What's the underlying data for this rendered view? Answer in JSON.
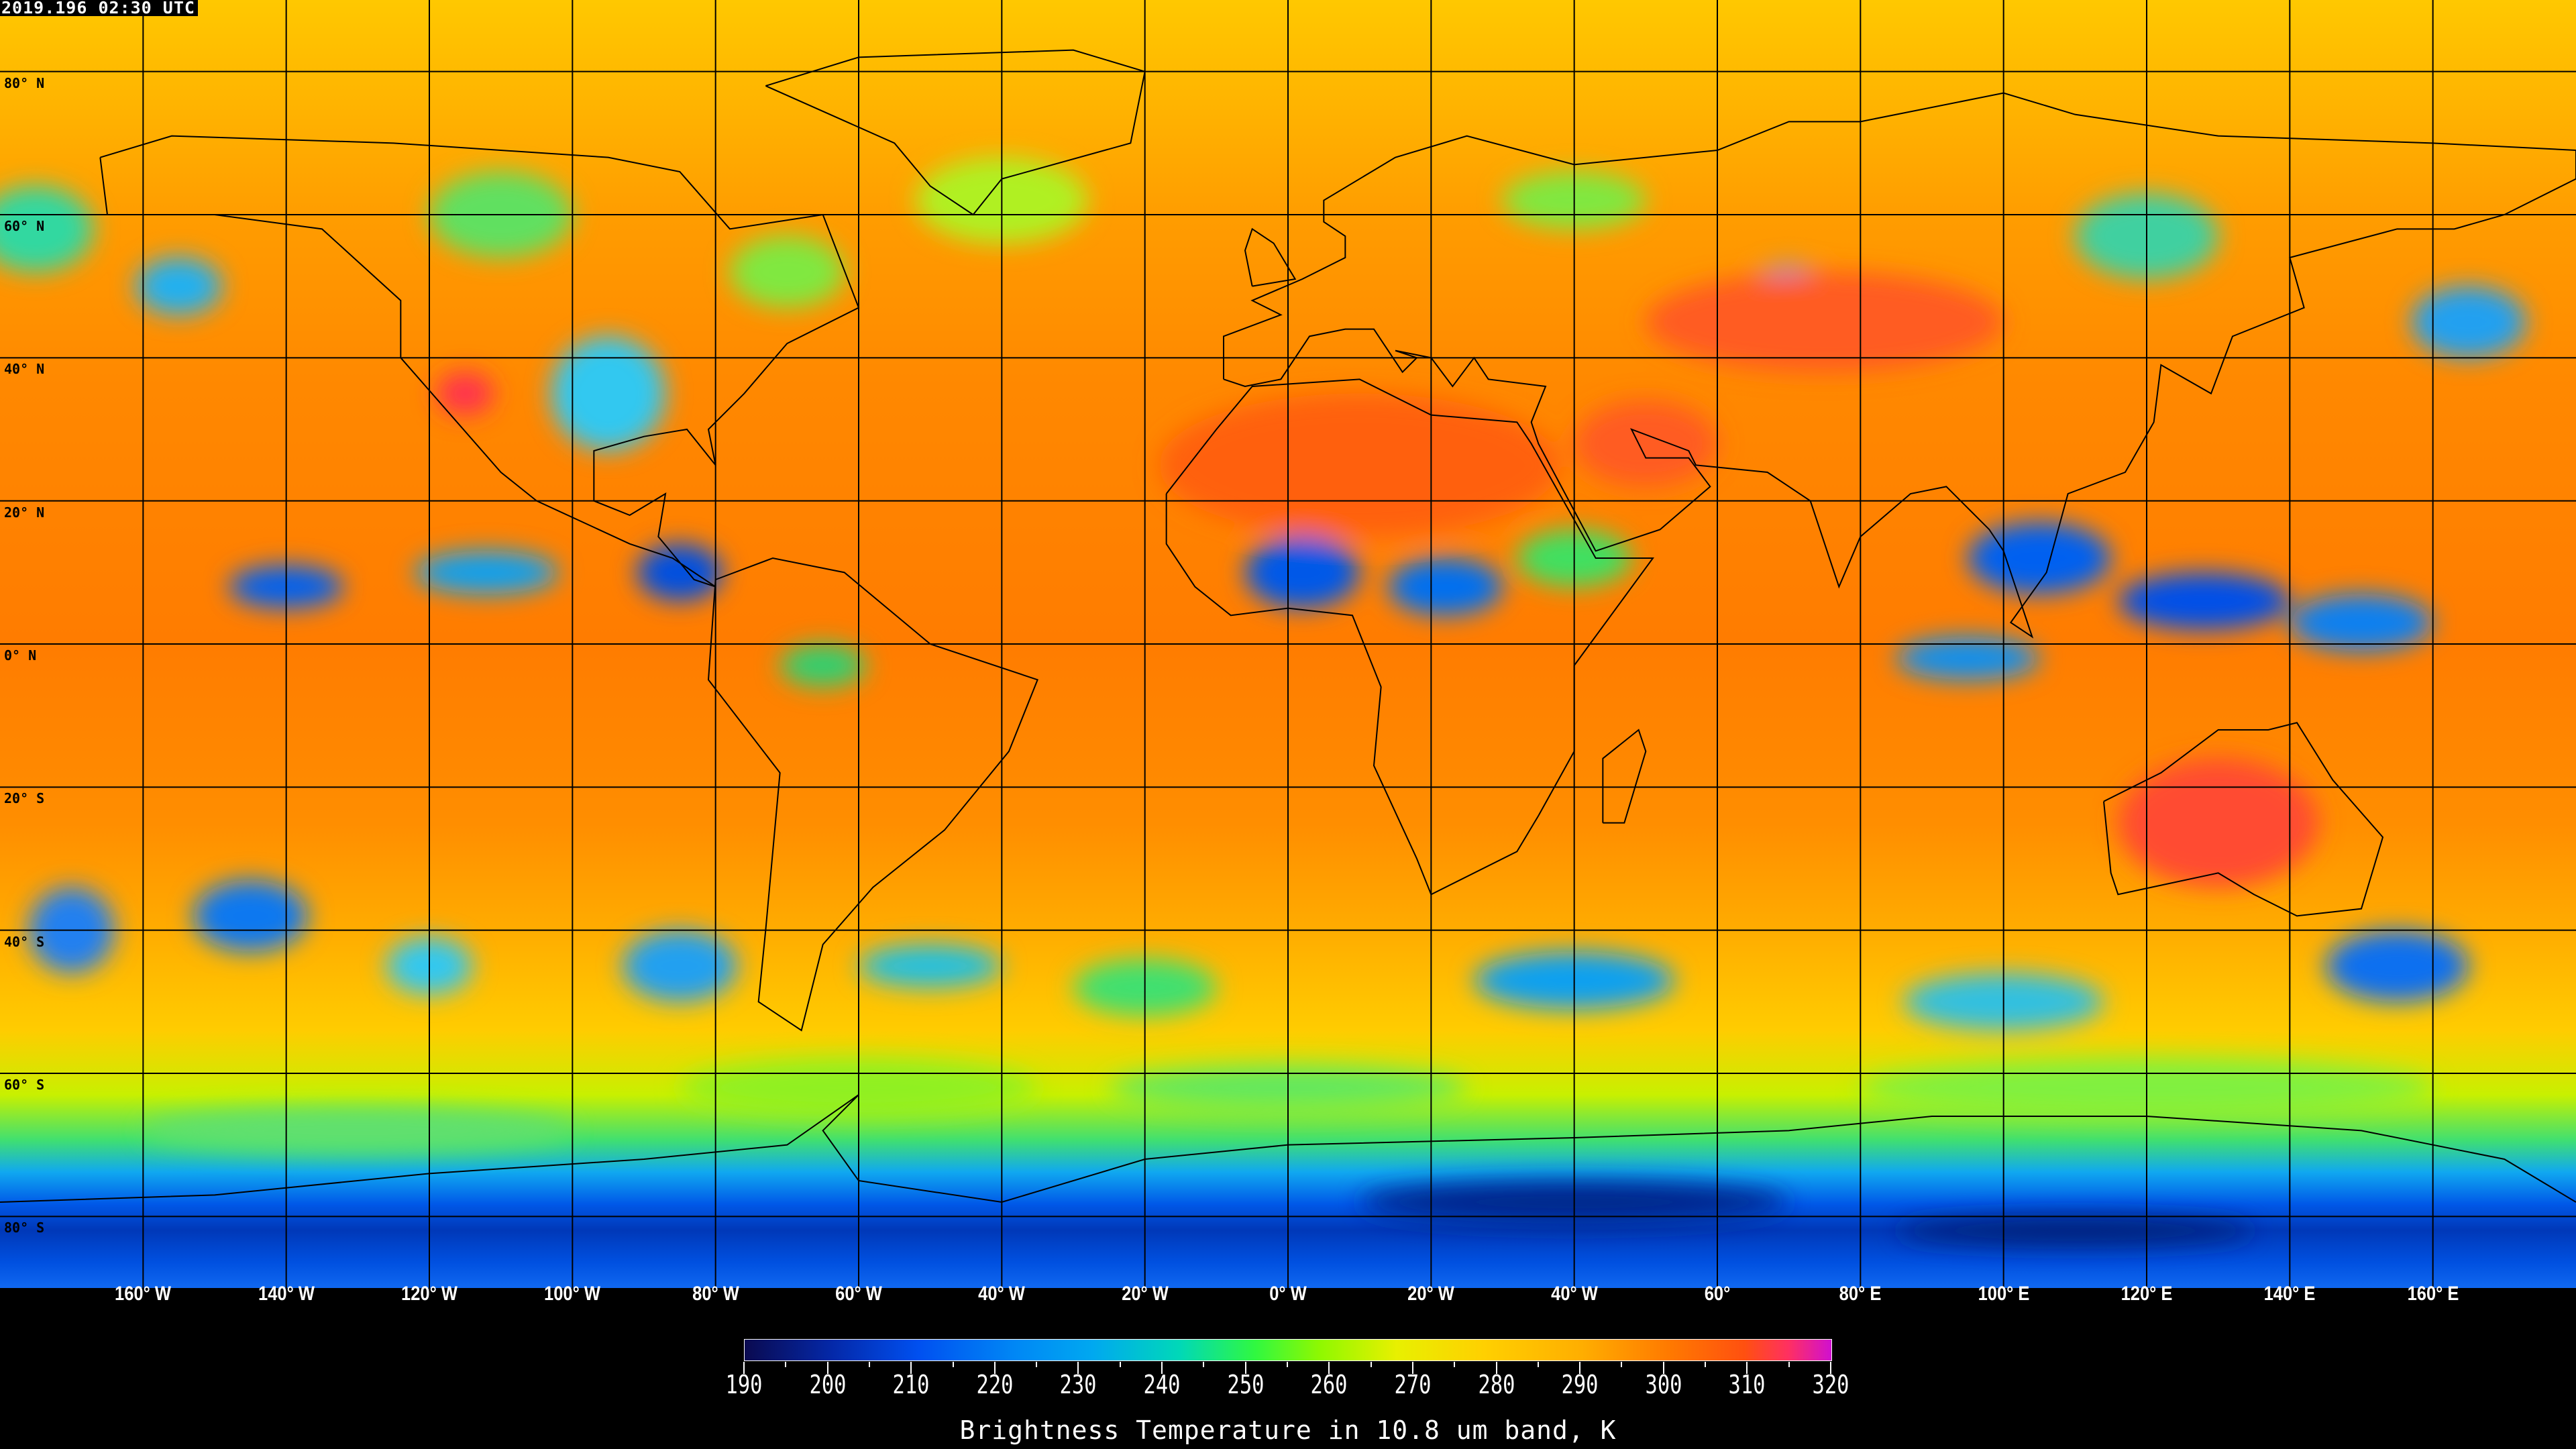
{
  "timestamp": "2019.196 02:30 UTC",
  "lat_labels": [
    "80° N",
    "60° N",
    "40° N",
    "20° N",
    "0° N",
    "20° S",
    "40° S",
    "60° S",
    "80° S"
  ],
  "lon_labels": [
    "160° W",
    "140° W",
    "120° W",
    "100° W",
    "80° W",
    "60° W",
    "40° W",
    "20° W",
    "0° W",
    "20° W",
    "40° W",
    "60°",
    "80° E",
    "100° E",
    "120° E",
    "140° E",
    "160° E"
  ],
  "colorbar": {
    "title": "Brightness Temperature in 10.8 um band, K",
    "ticks": [
      "190",
      "200",
      "210",
      "220",
      "230",
      "240",
      "250",
      "260",
      "270",
      "280",
      "290",
      "300",
      "310",
      "320"
    ],
    "range": [
      190,
      320
    ],
    "colors": [
      "#0a0a50",
      "#0050f0",
      "#00a8f0",
      "#30f840",
      "#e8f000",
      "#ffae00",
      "#ff5010",
      "#d010d0"
    ]
  }
}
